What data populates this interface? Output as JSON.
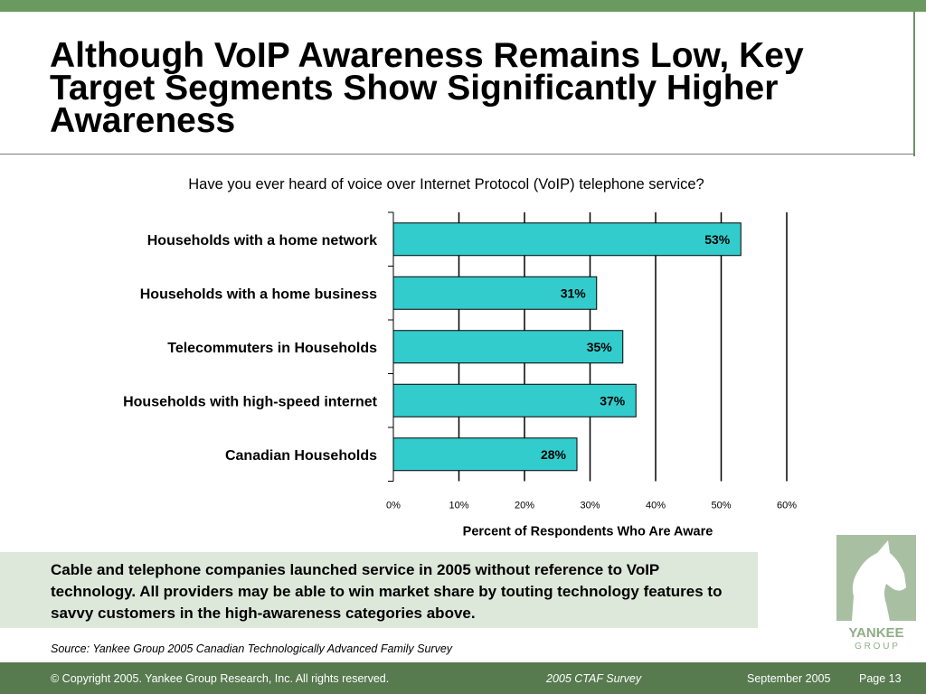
{
  "slide": {
    "title": "Although VoIP Awareness Remains Low, Key Target Segments Show Significantly Higher Awareness",
    "question": "Have you ever heard of voice over Internet Protocol (VoIP) telephone service?",
    "callout": "Cable and telephone companies launched service in 2005 without reference to VoIP technology. All providers may be able to win market share by touting technology features to savvy customers in the high-awareness categories above.",
    "source": "Source: Yankee Group 2005 Canadian Technologically Advanced Family Survey"
  },
  "logo": {
    "word1": "YANKEE",
    "word2": "G R O U P"
  },
  "footer": {
    "copyright": "© Copyright 2005. Yankee Group Research, Inc.  All rights reserved.",
    "survey": "2005 CTAF Survey",
    "date": "September 2005",
    "page": "Page 13"
  },
  "colors": {
    "bar": "#33cccc",
    "accent": "#6a9a5f",
    "footer": "#577a4f",
    "callout_bg": "#dde7da"
  },
  "chart_data": {
    "type": "bar",
    "orientation": "horizontal",
    "categories": [
      "Households with a home network",
      "Households with a home business",
      "Telecommuters in Households",
      "Households with high-speed internet",
      "Canadian Households"
    ],
    "values": [
      53,
      31,
      35,
      37,
      28
    ],
    "data_labels": [
      "53%",
      "31%",
      "35%",
      "37%",
      "28%"
    ],
    "xlim": [
      0,
      60
    ],
    "x_ticks": [
      "0%",
      "10%",
      "20%",
      "30%",
      "40%",
      "50%",
      "60%"
    ],
    "xlabel": "Percent of Respondents Who Are Aware",
    "grid": true,
    "legend": "none"
  }
}
